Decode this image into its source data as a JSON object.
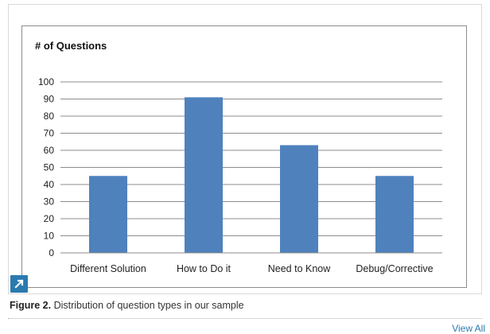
{
  "figure": {
    "caption_label": "Figure 2.",
    "caption_text": " Distribution of question types in our sample",
    "view_all_label": "View All"
  },
  "chart_data": {
    "type": "bar",
    "title": "# of Questions",
    "xlabel": "",
    "ylabel": "",
    "categories": [
      "Different Solution",
      "How to Do it",
      "Need to Know",
      "Debug/Corrective"
    ],
    "values": [
      45,
      91,
      63,
      45
    ],
    "ylim": [
      0,
      100
    ],
    "yticks": [
      0,
      10,
      20,
      30,
      40,
      50,
      60,
      70,
      80,
      90,
      100
    ],
    "grid": true,
    "legend": "none",
    "bar_color": "#4f81bd"
  }
}
